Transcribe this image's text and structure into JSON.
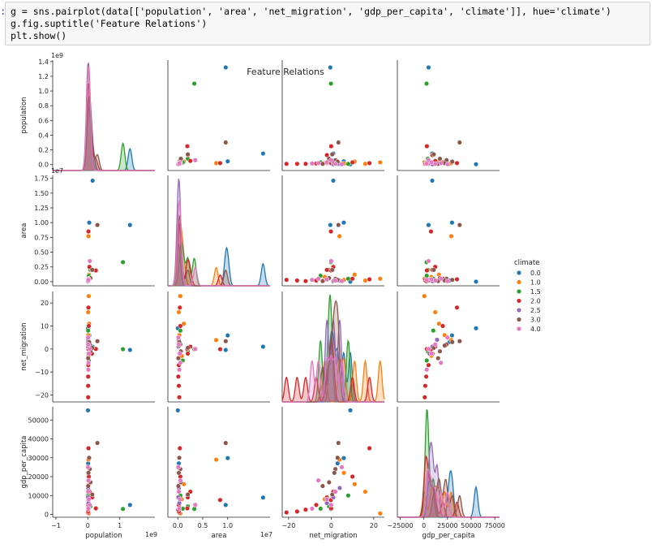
{
  "notebook": {
    "prompt": ":",
    "code_lines": [
      "g = sns.pairplot(data[['population', 'area', 'net_migration', 'gdp_per_capita', 'climate']], hue='climate')",
      "g.fig.suptitle('Feature Relations')",
      "plt.show()"
    ]
  },
  "chart_data": {
    "type": "scatter",
    "title": "Feature Relations",
    "variables": [
      "population",
      "area",
      "net_migration",
      "gdp_per_capita"
    ],
    "hue": "climate",
    "legend_title": "climate",
    "legend_position": "right",
    "hue_levels": [
      "0.0",
      "1.0",
      "1.5",
      "2.0",
      "2.5",
      "3.0",
      "4.0"
    ],
    "colors": [
      "#1f77b4",
      "#ff7f0e",
      "#2ca02c",
      "#d62728",
      "#9467bd",
      "#8c564b",
      "#e377c2"
    ],
    "axes": {
      "population": {
        "range": [
          -1100000000.0,
          2100000000.0
        ],
        "ticks": [
          -1,
          0,
          1
        ],
        "tick_labels": [
          "−1",
          "0",
          "1"
        ],
        "scale_label": "1e9",
        "y_ticks": [
          0,
          0.2,
          0.4,
          0.6,
          0.8,
          1.0,
          1.2,
          1.4
        ],
        "y_tick_labels": [
          "0.0",
          "0.2",
          "0.4",
          "0.6",
          "0.8",
          "1.0",
          "1.2",
          "1.4"
        ],
        "y_range": [
          -80000000.0,
          1420000000.0
        ]
      },
      "area": {
        "range": [
          -2000000.0,
          18500000.0
        ],
        "ticks": [
          0,
          0.5,
          1.0
        ],
        "tick_labels": [
          "0.0",
          "0.5",
          "1.0"
        ],
        "scale_label": "1e7",
        "y_ticks": [
          0,
          0.25,
          0.5,
          0.75,
          1.0,
          1.25,
          1.5,
          1.75
        ],
        "y_tick_labels": [
          "0.00",
          "0.25",
          "0.50",
          "0.75",
          "1.00",
          "1.25",
          "1.50",
          "1.75"
        ],
        "y_range": [
          -700000.0,
          18000000.0
        ]
      },
      "net_migration": {
        "range": [
          -23,
          25
        ],
        "ticks": [
          -20,
          0,
          20
        ],
        "tick_labels": [
          "−20",
          "0",
          "20"
        ],
        "y_ticks": [
          -20,
          -10,
          0,
          10,
          20
        ],
        "y_tick_labels": [
          "−20",
          "−10",
          "0",
          "10",
          "20"
        ],
        "y_range": [
          -23,
          25
        ]
      },
      "gdp_per_capita": {
        "range": [
          -28000,
          80000
        ],
        "ticks": [
          -25000,
          0,
          25000,
          50000,
          75000
        ],
        "tick_labels": [
          "−25000",
          "0",
          "25000",
          "50000",
          "75000"
        ],
        "y_ticks": [
          0,
          10000,
          20000,
          30000,
          40000,
          50000
        ],
        "y_tick_labels": [
          "0",
          "10000",
          "20000",
          "30000",
          "40000",
          "50000"
        ],
        "y_range": [
          -1500,
          57000
        ]
      }
    },
    "points": [
      {
        "climate": "0.0",
        "population": 1320000000.0,
        "area": 9600000.0,
        "net_migration": -0.4,
        "gdp_per_capita": 5000
      },
      {
        "climate": "0.0",
        "population": 150000000.0,
        "area": 17100000.0,
        "net_migration": 1.0,
        "gdp_per_capita": 8900
      },
      {
        "climate": "0.0",
        "population": 45000000.0,
        "area": 10000000.0,
        "net_migration": 5.9,
        "gdp_per_capita": 29800
      },
      {
        "climate": "0.0",
        "population": 5000000.0,
        "area": 0.0,
        "net_migration": 9.0,
        "gdp_per_capita": 55100
      },
      {
        "climate": "0.0",
        "population": 10000000.0,
        "area": 200000.0,
        "net_migration": 3.0,
        "gdp_per_capita": 27000
      },
      {
        "climate": "1.0",
        "population": 20000000.0,
        "area": 7700000.0,
        "net_migration": 3.9,
        "gdp_per_capita": 29000
      },
      {
        "climate": "1.0",
        "population": 30000000.0,
        "area": 500000.0,
        "net_migration": 23.0,
        "gdp_per_capita": 500
      },
      {
        "climate": "1.0",
        "population": 10000000.0,
        "area": 200000.0,
        "net_migration": 16.0,
        "gdp_per_capita": 12000
      },
      {
        "climate": "1.0",
        "population": 40000000.0,
        "area": 1200000.0,
        "net_migration": 11.0,
        "gdp_per_capita": 16000
      },
      {
        "climate": "1.0",
        "population": 20000000.0,
        "area": 800000.0,
        "net_migration": -3.0,
        "gdp_per_capita": 8000
      },
      {
        "climate": "1.0",
        "population": 15000000.0,
        "area": 300000.0,
        "net_migration": 6.0,
        "gdp_per_capita": 22000
      },
      {
        "climate": "1.5",
        "population": 1100000000.0,
        "area": 3300000.0,
        "net_migration": -0.1,
        "gdp_per_capita": 2900
      },
      {
        "climate": "1.5",
        "population": 80000000.0,
        "area": 2000000.0,
        "net_migration": -1.0,
        "gdp_per_capita": 4200
      },
      {
        "climate": "1.5",
        "population": 10000000.0,
        "area": 500000.0,
        "net_migration": 8.0,
        "gdp_per_capita": 10000
      },
      {
        "climate": "1.5",
        "population": 30000000.0,
        "area": 1000000.0,
        "net_migration": -5.0,
        "gdp_per_capita": 3000
      },
      {
        "climate": "2.0",
        "population": 250000000.0,
        "area": 1900000.0,
        "net_migration": 0.0,
        "gdp_per_capita": 3200
      },
      {
        "climate": "2.0",
        "population": 130000000.0,
        "area": 2000000.0,
        "net_migration": -2.0,
        "gdp_per_capita": 9000
      },
      {
        "climate": "2.0",
        "population": 20000000.0,
        "area": 8500000.0,
        "net_migration": -0.1,
        "gdp_per_capita": 7600
      },
      {
        "climate": "2.0",
        "population": 50000000.0,
        "area": 2500000.0,
        "net_migration": 1.0,
        "gdp_per_capita": 12000
      },
      {
        "climate": "2.0",
        "population": 10000000.0,
        "area": 300000.0,
        "net_migration": -21.0,
        "gdp_per_capita": 1000
      },
      {
        "climate": "2.0",
        "population": 10000000.0,
        "area": 200000.0,
        "net_migration": -16.0,
        "gdp_per_capita": 1500
      },
      {
        "climate": "2.0",
        "population": 20000000.0,
        "area": 400000.0,
        "net_migration": 18.0,
        "gdp_per_capita": 35000
      },
      {
        "climate": "2.0",
        "population": 10000000.0,
        "area": 100000.0,
        "net_migration": -12.0,
        "gdp_per_capita": 2500
      },
      {
        "climate": "2.0",
        "population": 30000000.0,
        "area": 500000.0,
        "net_migration": 10.0,
        "gdp_per_capita": 20000
      },
      {
        "climate": "2.0",
        "population": 15000000.0,
        "area": 200000.0,
        "net_migration": -7.0,
        "gdp_per_capita": 5000
      },
      {
        "climate": "2.5",
        "population": 10000000.0,
        "area": 200000.0,
        "net_migration": 4.0,
        "gdp_per_capita": 14000
      },
      {
        "climate": "2.5",
        "population": 20000000.0,
        "area": 300000.0,
        "net_migration": -2.0,
        "gdp_per_capita": 6000
      },
      {
        "climate": "2.5",
        "population": 5000000.0,
        "area": 100000.0,
        "net_migration": 1.0,
        "gdp_per_capita": 9000
      },
      {
        "climate": "3.0",
        "population": 300000000.0,
        "area": 9600000.0,
        "net_migration": 3.4,
        "gdp_per_capita": 37800
      },
      {
        "climate": "3.0",
        "population": 140000000.0,
        "area": 2000000.0,
        "net_migration": 0.5,
        "gdp_per_capita": 10500
      },
      {
        "climate": "3.0",
        "population": 60000000.0,
        "area": 500000.0,
        "net_migration": 2.0,
        "gdp_per_capita": 24000
      },
      {
        "climate": "3.0",
        "population": 40000000.0,
        "area": 300000.0,
        "net_migration": 3.0,
        "gdp_per_capita": 30000
      },
      {
        "climate": "3.0",
        "population": 80000000.0,
        "area": 600000.0,
        "net_migration": -1.0,
        "gdp_per_capita": 17000
      },
      {
        "climate": "3.0",
        "population": 20000000.0,
        "area": 200000.0,
        "net_migration": 1.5,
        "gdp_per_capita": 22000
      },
      {
        "climate": "3.0",
        "population": 10000000.0,
        "area": 100000.0,
        "net_migration": -4.0,
        "gdp_per_capita": 15000
      },
      {
        "climate": "4.0",
        "population": 60000000.0,
        "area": 3500000.0,
        "net_migration": 0.0,
        "gdp_per_capita": 5000
      },
      {
        "climate": "4.0",
        "population": 20000000.0,
        "area": 500000.0,
        "net_migration": -6.0,
        "gdp_per_capita": 18000
      },
      {
        "climate": "4.0",
        "population": 10000000.0,
        "area": 200000.0,
        "net_migration": 2.0,
        "gdp_per_capita": 12000
      },
      {
        "climate": "4.0",
        "population": 30000000.0,
        "area": 400000.0,
        "net_migration": -2.0,
        "gdp_per_capita": 8000
      },
      {
        "climate": "4.0",
        "population": 5000000.0,
        "area": 100000.0,
        "net_migration": 5.0,
        "gdp_per_capita": 25000
      },
      {
        "climate": "4.0",
        "population": 15000000.0,
        "area": 300000.0,
        "net_migration": -9.0,
        "gdp_per_capita": 3000
      }
    ]
  }
}
